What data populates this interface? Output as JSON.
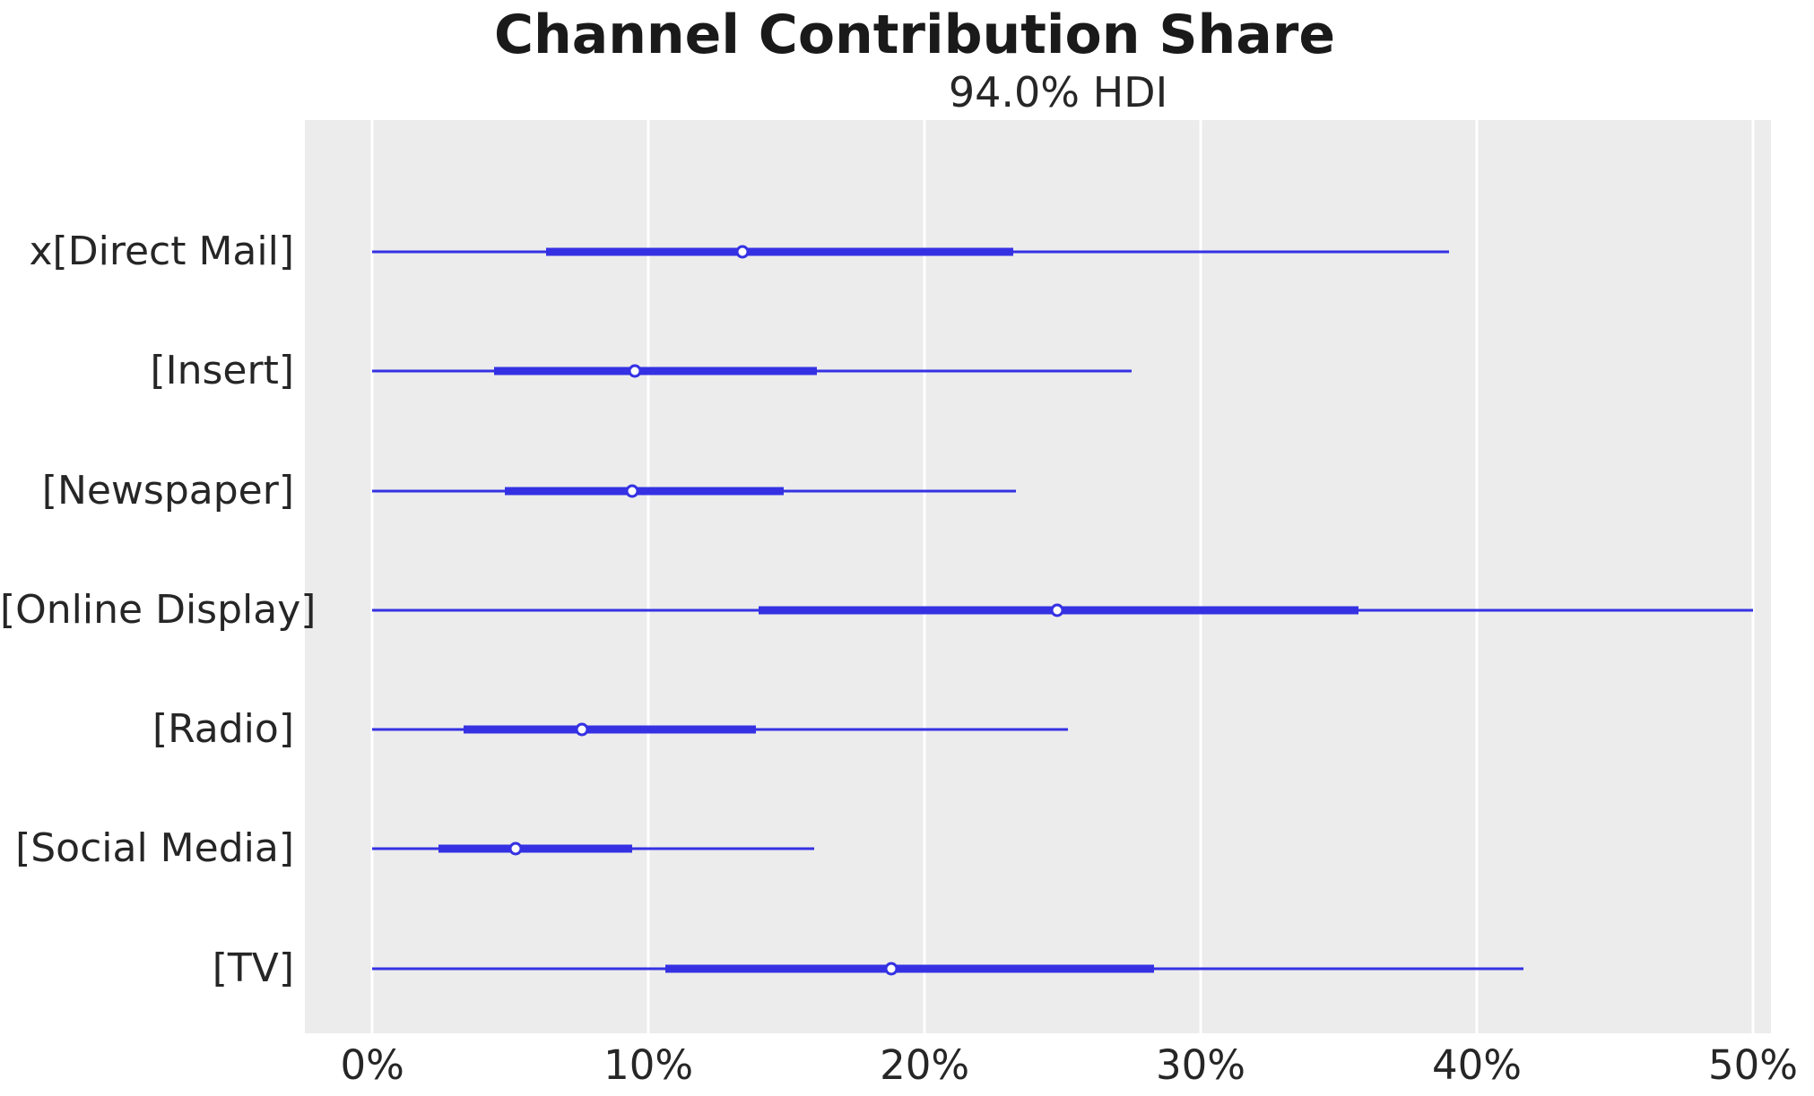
{
  "figure": {
    "title": "Channel Contribution Share",
    "subtitle": "94.0% HDI"
  },
  "colors": {
    "line": "#3531e3",
    "marker_face": "#ffffff",
    "plot_background": "#ececec",
    "gridline": "#ffffff",
    "text": "#262626",
    "figure_background": "#ffffff"
  },
  "chart_data": {
    "type": "forest",
    "title": "Channel Contribution Share",
    "subtitle": "94.0% HDI",
    "units": "percent",
    "orientation": "horizontal",
    "legend": "none",
    "grid": {
      "vertical": true,
      "horizontal": false
    },
    "xlim": [
      -2.44,
      50.65
    ],
    "x_ticks": [
      {
        "value": 0,
        "label": "0%"
      },
      {
        "value": 10,
        "label": "10%"
      },
      {
        "value": 20,
        "label": "20%"
      },
      {
        "value": 30,
        "label": "30%"
      },
      {
        "value": 40,
        "label": "40%"
      },
      {
        "value": 50,
        "label": "50%"
      }
    ],
    "rows": [
      {
        "label": "x[Direct Mail]",
        "hdi": [
          0.0,
          39.0
        ],
        "interquartile": [
          6.3,
          23.2
        ],
        "median": 13.4
      },
      {
        "label": "[Insert]",
        "hdi": [
          0.0,
          27.5
        ],
        "interquartile": [
          4.4,
          16.1
        ],
        "median": 9.5
      },
      {
        "label": "[Newspaper]",
        "hdi": [
          0.0,
          23.3
        ],
        "interquartile": [
          4.8,
          14.9
        ],
        "median": 9.4
      },
      {
        "label": "[Online Display]",
        "hdi": [
          0.0,
          50.0
        ],
        "interquartile": [
          14.0,
          35.7
        ],
        "median": 24.8
      },
      {
        "label": "[Radio]",
        "hdi": [
          0.0,
          25.2
        ],
        "interquartile": [
          3.3,
          13.9
        ],
        "median": 7.6
      },
      {
        "label": "[Social Media]",
        "hdi": [
          0.0,
          16.0
        ],
        "interquartile": [
          2.4,
          9.4
        ],
        "median": 5.2
      },
      {
        "label": "[TV]",
        "hdi": [
          0.0,
          41.7
        ],
        "interquartile": [
          10.6,
          28.3
        ],
        "median": 18.8
      }
    ]
  }
}
